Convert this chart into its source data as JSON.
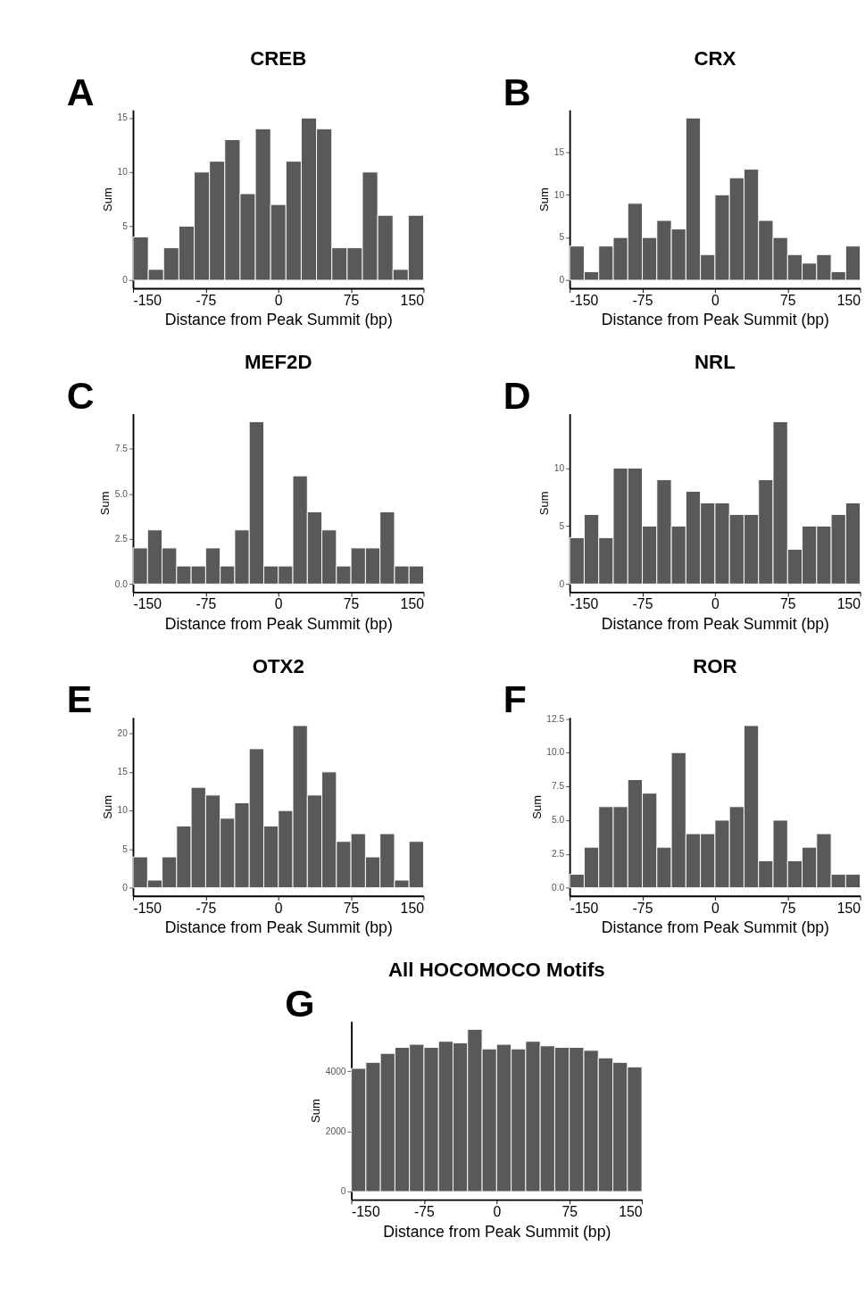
{
  "chart_data": [
    {
      "type": "histogram",
      "title": "CREB",
      "annotations": [
        "A"
      ],
      "xlabel": "Distance from Peak Summit (bp)",
      "ylabel": "Sum",
      "color": "#595959",
      "bins": [
        -150,
        -134.21,
        -118.42,
        -102.63,
        -86.84,
        -71.05,
        -55.26,
        -39.47,
        -23.68,
        -7.89,
        7.89,
        23.68,
        39.47,
        55.26,
        71.05,
        86.84,
        102.63,
        118.42,
        134.21,
        150
      ],
      "values": [
        4,
        1,
        3,
        5,
        10,
        11,
        13,
        8,
        14,
        7,
        11,
        15,
        14,
        3,
        3,
        10,
        6,
        1,
        6
      ],
      "xlim": [
        -150,
        150
      ],
      "xticks": [
        -150,
        -75,
        0,
        75,
        150
      ],
      "ylim": [
        -0.75,
        15.75
      ],
      "yticks": [
        0,
        5,
        10,
        15
      ]
    },
    {
      "type": "histogram",
      "title": "CRX",
      "annotations": [
        "B"
      ],
      "xlabel": "Distance from Peak Summit (bp)",
      "ylabel": "Sum",
      "color": "#595959",
      "bins": [
        -150,
        -135,
        -120,
        -105,
        -90,
        -75,
        -60,
        -45,
        -30,
        -15,
        0,
        15,
        30,
        45,
        60,
        75,
        90,
        105,
        120,
        135,
        150
      ],
      "values": [
        4,
        1,
        4,
        5,
        9,
        5,
        7,
        6,
        19,
        3,
        10,
        12,
        13,
        7,
        5,
        3,
        2,
        3,
        1,
        4
      ],
      "xlim": [
        -150,
        150
      ],
      "xticks": [
        -150,
        -75,
        0,
        75,
        150
      ],
      "ylim": [
        -0.95,
        19.95
      ],
      "yticks": [
        0,
        5,
        10,
        15
      ]
    },
    {
      "type": "histogram",
      "title": "MEF2D",
      "annotations": [
        "C"
      ],
      "xlabel": "Distance from Peak Summit (bp)",
      "ylabel": "Sum",
      "color": "#595959",
      "bins": [
        -150,
        -135,
        -120,
        -105,
        -90,
        -75,
        -60,
        -45,
        -30,
        -15,
        0,
        15,
        30,
        45,
        60,
        75,
        90,
        105,
        120,
        135,
        150
      ],
      "values": [
        2,
        3,
        2,
        1,
        1,
        2,
        1,
        3,
        9,
        1,
        1,
        6,
        4,
        3,
        1,
        2,
        2,
        4,
        1,
        1
      ],
      "xlim": [
        -150,
        150
      ],
      "xticks": [
        -150,
        -75,
        0,
        75,
        150
      ],
      "ylim": [
        -0.45,
        9.45
      ],
      "yticks": [
        {
          "value": 0,
          "label": "0.0"
        },
        2.5,
        {
          "value": 5,
          "label": "5.0"
        },
        7.5
      ]
    },
    {
      "type": "histogram",
      "title": "NRL",
      "annotations": [
        "D"
      ],
      "xlabel": "Distance from Peak Summit (bp)",
      "ylabel": "Sum",
      "color": "#595959",
      "bins": [
        -150,
        -135,
        -120,
        -105,
        -90,
        -75,
        -60,
        -45,
        -30,
        -15,
        0,
        15,
        30,
        45,
        60,
        75,
        90,
        105,
        120,
        135,
        150
      ],
      "values": [
        4,
        6,
        4,
        10,
        10,
        5,
        9,
        5,
        8,
        7,
        7,
        6,
        6,
        9,
        14,
        3,
        5,
        5,
        6,
        7
      ],
      "xlim": [
        -150,
        150
      ],
      "xticks": [
        -150,
        -75,
        0,
        75,
        150
      ],
      "ylim": [
        -0.7,
        14.7
      ],
      "yticks": [
        0,
        5,
        10
      ]
    },
    {
      "type": "histogram",
      "title": "OTX2",
      "annotations": [
        "E"
      ],
      "xlabel": "Distance from Peak Summit (bp)",
      "ylabel": "Sum",
      "color": "#595959",
      "bins": [
        -150,
        -135,
        -120,
        -105,
        -90,
        -75,
        -60,
        -45,
        -30,
        -15,
        0,
        15,
        30,
        45,
        60,
        75,
        90,
        105,
        120,
        135,
        150
      ],
      "values": [
        4,
        1,
        4,
        8,
        13,
        12,
        9,
        11,
        18,
        8,
        10,
        21,
        12,
        15,
        6,
        7,
        4,
        7,
        1,
        6
      ],
      "xlim": [
        -150,
        150
      ],
      "xticks": [
        -150,
        -75,
        0,
        75,
        150
      ],
      "ylim": [
        -1.05,
        22.05
      ],
      "yticks": [
        0,
        5,
        10,
        15,
        20
      ]
    },
    {
      "type": "histogram",
      "title": "ROR",
      "annotations": [
        "F"
      ],
      "xlabel": "Distance from Peak Summit (bp)",
      "ylabel": "Sum",
      "color": "#595959",
      "bins": [
        -150,
        -135,
        -120,
        -105,
        -90,
        -75,
        -60,
        -45,
        -30,
        -15,
        0,
        15,
        30,
        45,
        60,
        75,
        90,
        105,
        120,
        135,
        150
      ],
      "values": [
        1,
        3,
        6,
        6,
        8,
        7,
        3,
        10,
        4,
        4,
        5,
        6,
        12,
        2,
        5,
        2,
        3,
        4,
        1,
        1
      ],
      "xlim": [
        -150,
        150
      ],
      "xticks": [
        -150,
        -75,
        0,
        75,
        150
      ],
      "ylim": [
        -0.6,
        12.6
      ],
      "yticks": [
        {
          "value": 0,
          "label": "0.0"
        },
        2.5,
        {
          "value": 5,
          "label": "5.0"
        },
        7.5,
        {
          "value": 10,
          "label": "10.0"
        },
        12.5
      ]
    },
    {
      "type": "histogram",
      "title": "All HOCOMOCO Motifs",
      "annotations": [
        "G"
      ],
      "xlabel": "Distance from Peak Summit (bp)",
      "ylabel": "Sum",
      "color": "#595959",
      "bins": [
        -150,
        -135,
        -120,
        -105,
        -90,
        -75,
        -60,
        -45,
        -30,
        -15,
        0,
        15,
        30,
        45,
        60,
        75,
        90,
        105,
        120,
        135,
        150
      ],
      "values": [
        4100,
        4300,
        4600,
        4800,
        4900,
        4800,
        5000,
        4950,
        5400,
        4750,
        4900,
        4750,
        5000,
        4850,
        4800,
        4800,
        4700,
        4450,
        4300,
        4150
      ],
      "xlim": [
        -150,
        150
      ],
      "xticks": [
        -150,
        -75,
        0,
        75,
        150
      ],
      "ylim": [
        -270,
        5670
      ],
      "yticks": [
        0,
        2000,
        4000
      ]
    }
  ]
}
